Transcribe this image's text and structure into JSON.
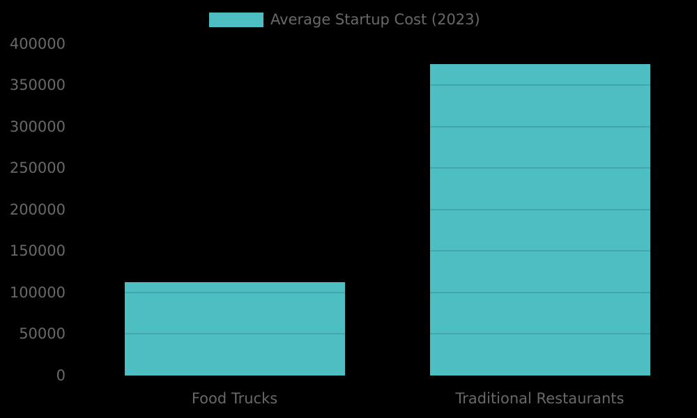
{
  "chart_data": {
    "type": "bar",
    "legend": {
      "label": "Average Startup Cost (2023)",
      "position": "top-center"
    },
    "categories": [
      "Food Trucks",
      "Traditional Restaurants"
    ],
    "series": [
      {
        "name": "Average Startup Cost (2023)",
        "values": [
          112500,
          375000
        ]
      }
    ],
    "ylim": [
      0,
      400000
    ],
    "ytick_step": 50000,
    "ytick_labels": [
      "0",
      "50000",
      "100000",
      "150000",
      "200000",
      "250000",
      "300000",
      "350000",
      "400000"
    ],
    "grid": true,
    "colors": {
      "bar": "#4dbec1",
      "text": "#696969",
      "background": "#000000",
      "gridline_over_bar": "rgba(0,0,0,0.12)"
    }
  }
}
